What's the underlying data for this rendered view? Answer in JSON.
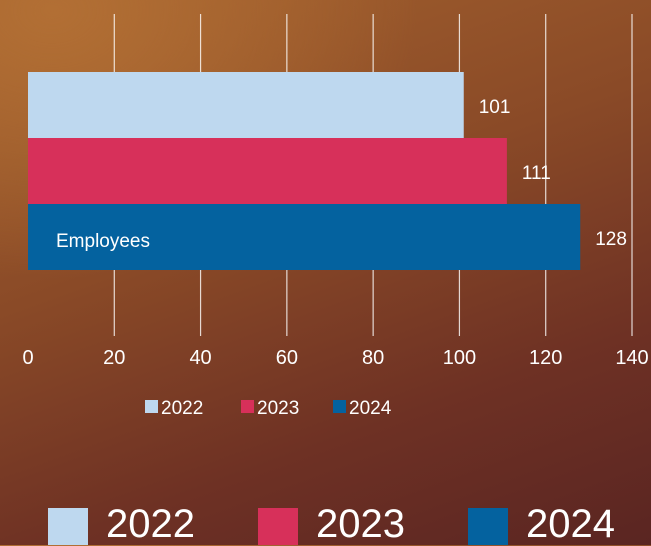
{
  "chart_data": {
    "type": "bar",
    "orientation": "horizontal",
    "categories": [
      "Employees"
    ],
    "series": [
      {
        "name": "2022",
        "values": [
          101
        ],
        "color": "#bed8ef"
      },
      {
        "name": "2023",
        "values": [
          111
        ],
        "color": "#d7305a"
      },
      {
        "name": "2024",
        "values": [
          128
        ],
        "color": "#04629f"
      }
    ],
    "xlim": [
      0,
      140
    ],
    "xticks": [
      "0",
      "20",
      "40",
      "60",
      "80",
      "100",
      "120",
      "140"
    ],
    "grid": "vertical",
    "legend": "bottom",
    "data_labels": [
      "101",
      "111",
      "128"
    ]
  },
  "big_legend": [
    {
      "label": "2022",
      "color": "#bed8ef"
    },
    {
      "label": "2023",
      "color": "#d7305a"
    },
    {
      "label": "2024",
      "color": "#04629f"
    }
  ]
}
